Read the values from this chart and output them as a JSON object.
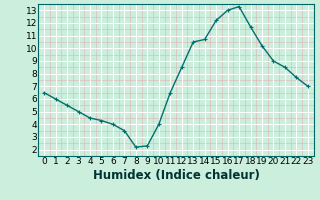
{
  "x": [
    0,
    1,
    2,
    3,
    4,
    5,
    6,
    7,
    8,
    9,
    10,
    11,
    12,
    13,
    14,
    15,
    16,
    17,
    18,
    19,
    20,
    21,
    22,
    23
  ],
  "y": [
    6.5,
    6.0,
    5.5,
    5.0,
    4.5,
    4.3,
    4.0,
    3.5,
    2.2,
    2.3,
    4.0,
    6.5,
    8.5,
    10.5,
    10.7,
    12.2,
    13.0,
    13.3,
    11.7,
    10.2,
    9.0,
    8.5,
    7.7,
    7.0
  ],
  "xlabel": "Humidex (Indice chaleur)",
  "line_color": "#007070",
  "marker_color": "#007070",
  "bg_color": "#cceedd",
  "minor_grid_color": "#ddbcbc",
  "major_grid_color": "#ffffff",
  "xlim": [
    -0.5,
    23.5
  ],
  "ylim": [
    1.5,
    13.5
  ],
  "yticks": [
    2,
    3,
    4,
    5,
    6,
    7,
    8,
    9,
    10,
    11,
    12,
    13
  ],
  "xticks": [
    0,
    1,
    2,
    3,
    4,
    5,
    6,
    7,
    8,
    9,
    10,
    11,
    12,
    13,
    14,
    15,
    16,
    17,
    18,
    19,
    20,
    21,
    22,
    23
  ],
  "tick_fontsize": 6.5,
  "xlabel_fontsize": 8.5,
  "line_width": 1.0,
  "marker_size": 2.5
}
